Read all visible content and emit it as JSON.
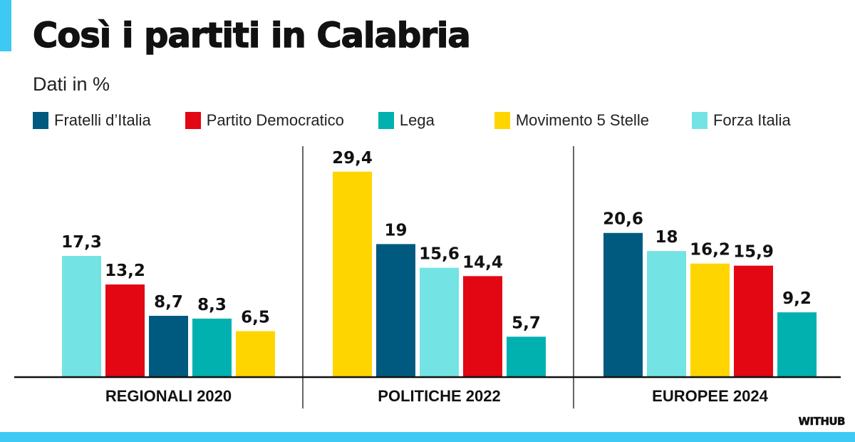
{
  "header": {
    "title": "Così i partiti in Calabria",
    "subtitle": "Dati in %"
  },
  "legend": [
    {
      "name": "Fratelli d’Italia",
      "color": "#005a80"
    },
    {
      "name": "Partito Democratico",
      "color": "#e30613"
    },
    {
      "name": "Lega",
      "color": "#00b1b0"
    },
    {
      "name": "Movimento 5 Stelle",
      "color": "#ffd500"
    },
    {
      "name": "Forza Italia",
      "color": "#74e3e4"
    }
  ],
  "footer": {
    "brand": "WITHUB"
  },
  "colors": {
    "accent": "#3ec8f4",
    "axis": "#111111",
    "divider": "#333333"
  },
  "chart_data": {
    "type": "bar",
    "title": "Così i partiti in Calabria",
    "subtitle": "Dati in %",
    "xlabel": "",
    "ylabel": "%",
    "ylim": [
      0,
      30
    ],
    "grid": false,
    "legend_position": "top",
    "categories": [
      "REGIONALI 2020",
      "POLITICHE 2022",
      "EUROPEE 2024"
    ],
    "groups": [
      {
        "category": "REGIONALI 2020",
        "bars": [
          {
            "party": "Forza Italia",
            "value": 17.3,
            "label": "17,3"
          },
          {
            "party": "Partito Democratico",
            "value": 13.2,
            "label": "13,2"
          },
          {
            "party": "Fratelli d’Italia",
            "value": 8.7,
            "label": "8,7"
          },
          {
            "party": "Lega",
            "value": 8.3,
            "label": "8,3"
          },
          {
            "party": "Movimento 5 Stelle",
            "value": 6.5,
            "label": "6,5"
          }
        ]
      },
      {
        "category": "POLITICHE 2022",
        "bars": [
          {
            "party": "Movimento 5 Stelle",
            "value": 29.4,
            "label": "29,4"
          },
          {
            "party": "Fratelli d’Italia",
            "value": 19,
            "label": "19"
          },
          {
            "party": "Forza Italia",
            "value": 15.6,
            "label": "15,6"
          },
          {
            "party": "Partito Democratico",
            "value": 14.4,
            "label": "14,4"
          },
          {
            "party": "Lega",
            "value": 5.7,
            "label": "5,7"
          }
        ]
      },
      {
        "category": "EUROPEE 2024",
        "bars": [
          {
            "party": "Fratelli d’Italia",
            "value": 20.6,
            "label": "20,6"
          },
          {
            "party": "Forza Italia",
            "value": 18,
            "label": "18"
          },
          {
            "party": "Movimento 5 Stelle",
            "value": 16.2,
            "label": "16,2"
          },
          {
            "party": "Partito Democratico",
            "value": 15.9,
            "label": "15,9"
          },
          {
            "party": "Lega",
            "value": 9.2,
            "label": "9,2"
          }
        ]
      }
    ],
    "series": [
      {
        "name": "Fratelli d’Italia",
        "values": [
          8.7,
          19,
          20.6
        ]
      },
      {
        "name": "Partito Democratico",
        "values": [
          13.2,
          14.4,
          15.9
        ]
      },
      {
        "name": "Lega",
        "values": [
          8.3,
          5.7,
          9.2
        ]
      },
      {
        "name": "Movimento 5 Stelle",
        "values": [
          6.5,
          29.4,
          16.2
        ]
      },
      {
        "name": "Forza Italia",
        "values": [
          17.3,
          15.6,
          18
        ]
      }
    ]
  }
}
